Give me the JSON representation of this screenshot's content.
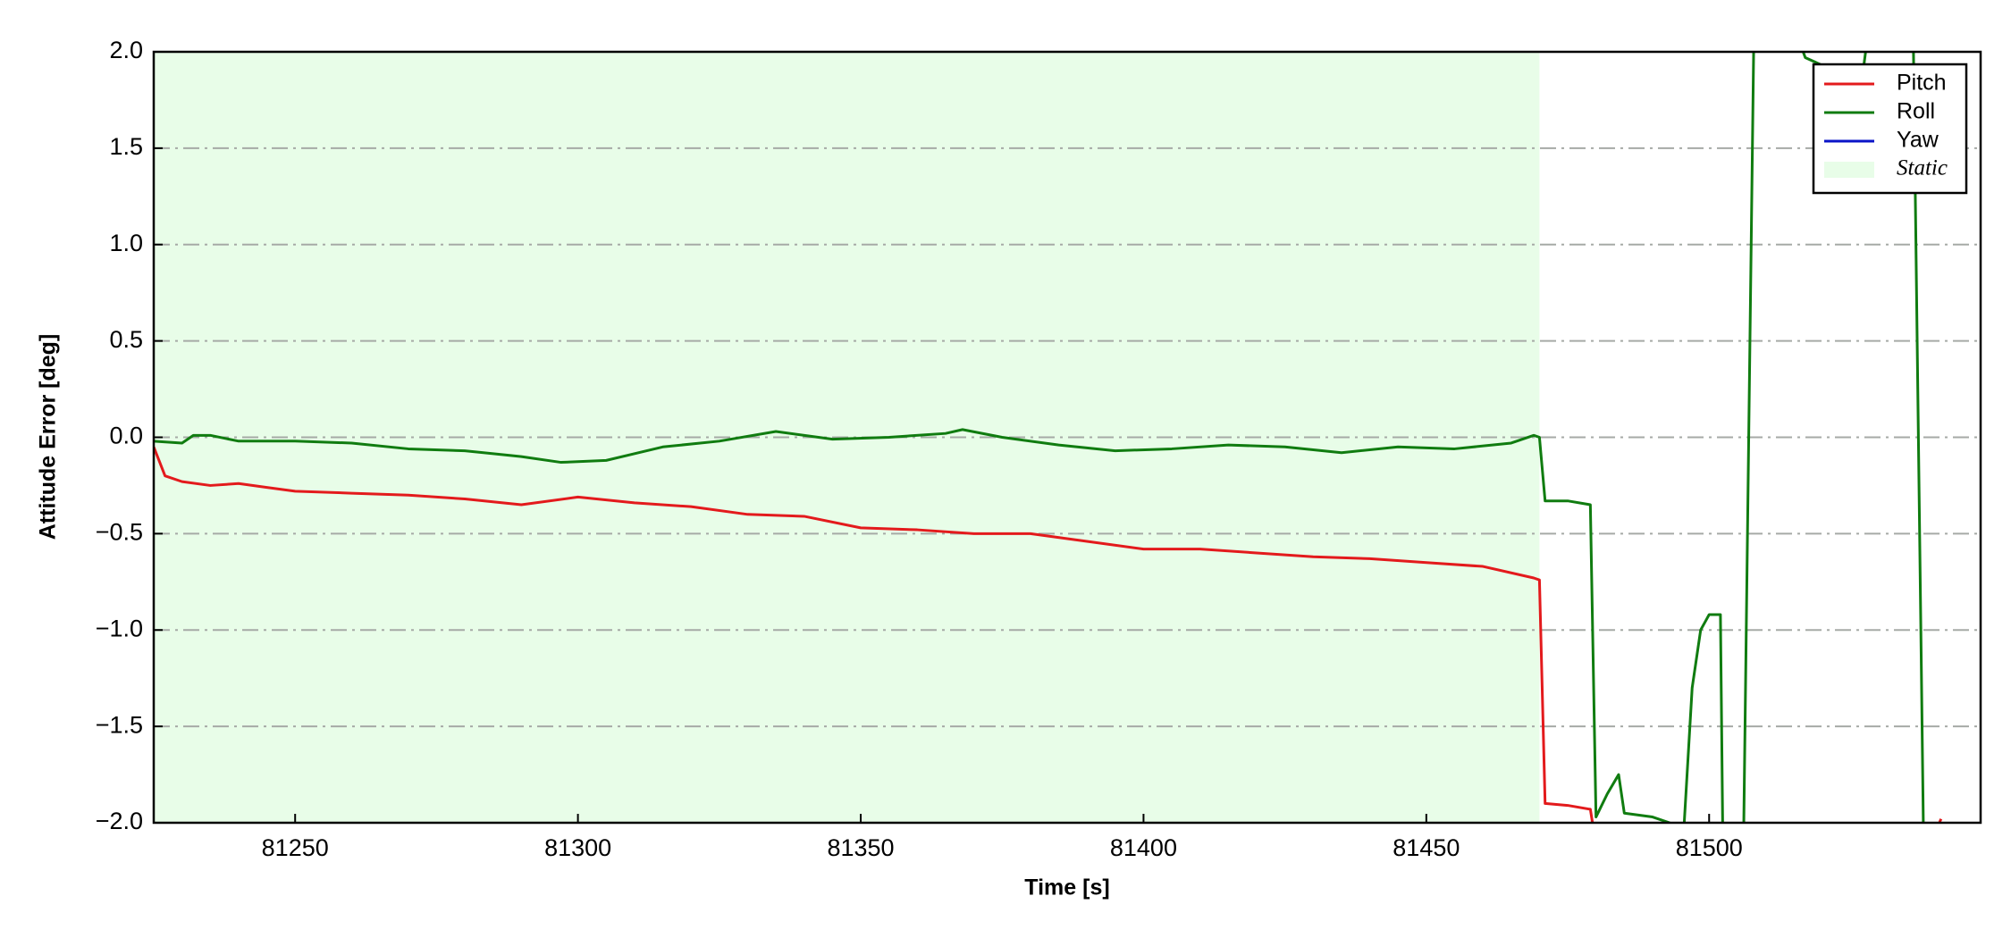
{
  "chart_data": {
    "type": "line",
    "xlabel": "Time [s]",
    "ylabel": "Attitude Error [deg]",
    "xlim": [
      81225,
      81548
    ],
    "xticks": [
      81250,
      81300,
      81350,
      81400,
      81450,
      81500
    ],
    "ylim": [
      -2.0,
      2.0
    ],
    "yticks": [
      {
        "value": -2.0,
        "label": "−2.0"
      },
      {
        "value": -1.5,
        "label": "−1.5"
      },
      {
        "value": -1.0,
        "label": "−1.0"
      },
      {
        "value": -0.5,
        "label": "−0.5"
      },
      {
        "value": 0.0,
        "label": "0.0"
      },
      0.5,
      {
        "value": 1.0,
        "label": "1.0"
      },
      1.5,
      {
        "value": 2.0,
        "label": "2.0"
      }
    ],
    "grid": true,
    "legend": "upper right",
    "shade": {
      "name": "Static",
      "color": "#e8fde8",
      "x": [
        81225,
        81470
      ]
    },
    "series": [
      {
        "name": "Pitch",
        "color": "#e31a1c",
        "x": [
          81225,
          81227,
          81230,
          81235,
          81240,
          81245,
          81250,
          81260,
          81270,
          81280,
          81290,
          81300,
          81310,
          81320,
          81330,
          81340,
          81350,
          81360,
          81370,
          81380,
          81390,
          81400,
          81410,
          81420,
          81430,
          81440,
          81450,
          81460,
          81469,
          81470,
          81471,
          81475,
          81479,
          81481,
          81500,
          81540,
          81541
        ],
        "values": [
          -0.05,
          -0.2,
          -0.23,
          -0.25,
          -0.24,
          -0.26,
          -0.28,
          -0.29,
          -0.3,
          -0.32,
          -0.35,
          -0.31,
          -0.34,
          -0.36,
          -0.4,
          -0.41,
          -0.47,
          -0.48,
          -0.5,
          -0.5,
          -0.54,
          -0.58,
          -0.58,
          -0.6,
          -0.62,
          -0.63,
          -0.65,
          -0.67,
          -0.73,
          -0.74,
          -1.9,
          -1.91,
          -1.93,
          -2.3,
          null,
          -2.05,
          -1.98
        ]
      },
      {
        "name": "Roll",
        "color": "#107c10",
        "x": [
          81225,
          81230,
          81232,
          81235,
          81240,
          81250,
          81260,
          81270,
          81280,
          81290,
          81297,
          81305,
          81315,
          81325,
          81335,
          81345,
          81355,
          81365,
          81368,
          81375,
          81385,
          81395,
          81405,
          81415,
          81425,
          81435,
          81445,
          81455,
          81465,
          81469,
          81470,
          81471,
          81475,
          81479,
          81480,
          81482,
          81484,
          81485,
          81490,
          81493,
          81495,
          81497,
          81498.5,
          81500,
          81502,
          81502.5,
          81506,
          81508,
          81516,
          81517,
          81520,
          81523,
          81527,
          81529,
          81536,
          81538
        ],
        "values": [
          -0.02,
          -0.03,
          0.01,
          0.01,
          -0.02,
          -0.02,
          -0.03,
          -0.06,
          -0.07,
          -0.1,
          -0.13,
          -0.12,
          -0.05,
          -0.02,
          0.03,
          -0.01,
          0.0,
          0.02,
          0.04,
          0.0,
          -0.04,
          -0.07,
          -0.06,
          -0.04,
          -0.05,
          -0.08,
          -0.05,
          -0.06,
          -0.03,
          0.01,
          0.0,
          -0.33,
          -0.33,
          -0.35,
          -1.97,
          -1.85,
          -1.75,
          -1.95,
          -1.97,
          -2.0,
          -2.3,
          -1.3,
          -1.0,
          -0.92,
          -0.92,
          -2.3,
          -2.3,
          2.3,
          2.05,
          1.97,
          1.93,
          1.88,
          1.85,
          2.3,
          2.3,
          -2.3
        ]
      },
      {
        "name": "Yaw",
        "color": "#0a14c8",
        "x": [],
        "values": []
      }
    ]
  }
}
